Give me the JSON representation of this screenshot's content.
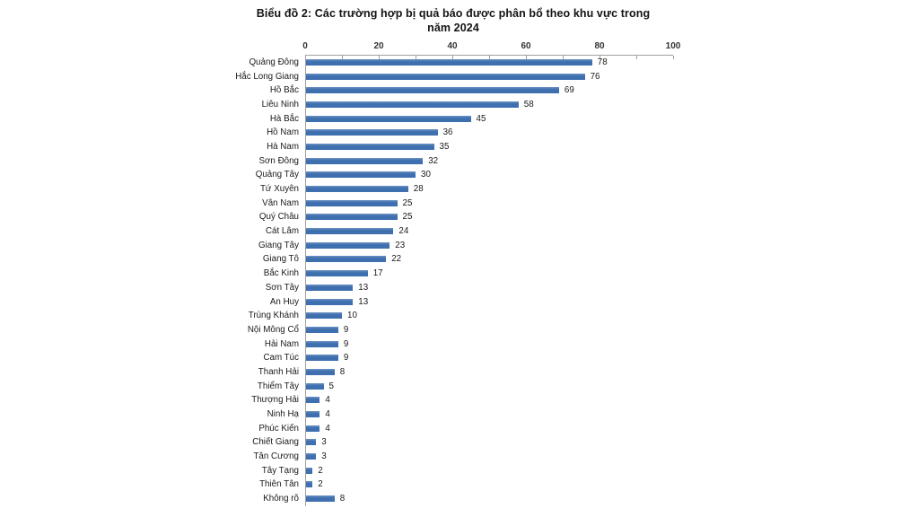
{
  "chart": {
    "title_line1": "Biểu đồ 2: Các trường hợp bị quả báo được phân bổ theo khu vực trong",
    "title_line2": "năm 2024"
  },
  "chart_data": {
    "type": "bar",
    "orientation": "horizontal",
    "title": "Biểu đồ 2: Các trường hợp bị quả báo được phân bổ theo khu vực trong năm 2024",
    "categories": [
      "Quảng Đông",
      "Hắc Long Giang",
      "Hồ Bắc",
      "Liêu Ninh",
      "Hà Bắc",
      "Hồ Nam",
      "Hà Nam",
      "Sơn Đông",
      "Quảng Tây",
      "Tứ Xuyên",
      "Vân Nam",
      "Quý Châu",
      "Cát Lâm",
      "Giang Tây",
      "Giang Tô",
      "Bắc Kinh",
      "Sơn Tây",
      "An Huy",
      "Trùng Khánh",
      "Nội Mông Cổ",
      "Hải Nam",
      "Cam Túc",
      "Thanh Hải",
      "Thiểm Tây",
      "Thượng Hải",
      "Ninh Hạ",
      "Phúc Kiến",
      "Chiết Giang",
      "Tân Cương",
      "Tây Tạng",
      "Thiên Tân",
      "Không rõ"
    ],
    "values": [
      78,
      76,
      69,
      58,
      45,
      36,
      35,
      32,
      30,
      28,
      25,
      25,
      24,
      23,
      22,
      17,
      13,
      13,
      10,
      9,
      9,
      9,
      8,
      5,
      4,
      4,
      4,
      3,
      3,
      2,
      2,
      8
    ],
    "xlabel": "",
    "ylabel": "",
    "xlim": [
      0,
      100
    ],
    "x_major_ticks": [
      0,
      20,
      40,
      60,
      80,
      100
    ],
    "x_minor_tick_step": 10,
    "value_labels": true,
    "grid": false,
    "legend": false,
    "bar_color": "#3e6fae",
    "axis_color": "#a0a0a0",
    "text_color": "#1a1a1a"
  }
}
